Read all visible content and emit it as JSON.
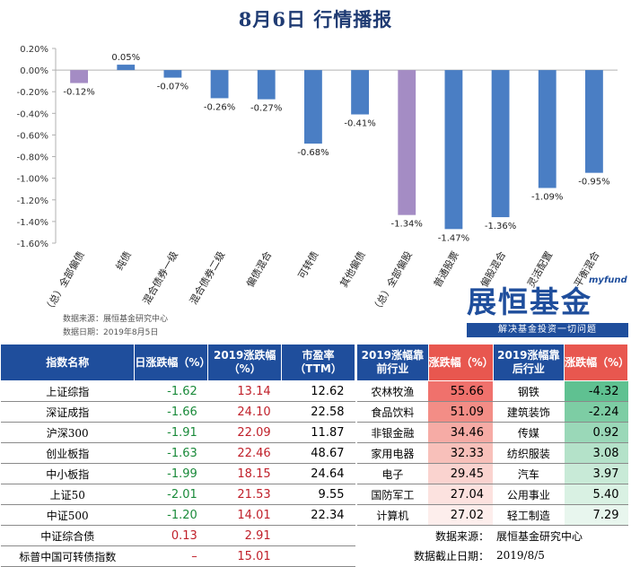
{
  "title": "8月6日  行情播报",
  "chart_data": {
    "type": "bar",
    "categories": [
      "（总）全部偏债",
      "纯债",
      "混合债券一级",
      "混合债券二级",
      "偏债混合",
      "可转债",
      "其他偏债",
      "（总）全部偏股",
      "普通股票",
      "偏股混合",
      "灵活配置",
      "平衡混合"
    ],
    "values": [
      -0.12,
      0.05,
      -0.07,
      -0.26,
      -0.27,
      -0.68,
      -0.41,
      -1.34,
      -1.47,
      -1.36,
      -1.09,
      -0.95
    ],
    "value_labels": [
      "-0.12%",
      "0.05%",
      "-0.07%",
      "-0.26%",
      "-0.27%",
      "-0.68%",
      "-0.41%",
      "-1.34%",
      "-1.47%",
      "-1.36%",
      "-1.09%",
      "-0.95%"
    ],
    "highlight_indices": [
      0,
      7
    ],
    "yticks": [
      "0.20%",
      "0.00%",
      "-0.20%",
      "-0.40%",
      "-0.60%",
      "-0.80%",
      "-1.00%",
      "-1.20%",
      "-1.40%",
      "-1.60%"
    ],
    "ylim": [
      -1.6,
      0.2
    ],
    "colors": {
      "normal": "#4a7ec4",
      "highlight": "#a48cc4",
      "axis": "#b0b0b0"
    },
    "grid": false,
    "legend": "none"
  },
  "source_note": {
    "line1": "数据来源：展恒基金研究中心",
    "line2": "数据日期：2019年8月5日"
  },
  "logo": {
    "small": "myfund",
    "main": "展恒基金",
    "slogan": "解决基金投资一切问题"
  },
  "left_table": {
    "headers": [
      "指数名称",
      "日涨跌幅（%）",
      "2019涨跌幅（%）",
      "市盈率（TTM）"
    ],
    "rows": [
      {
        "name": "上证综指",
        "day": "-1.62",
        "ytd": "13.14",
        "pe": "12.62"
      },
      {
        "name": "深证成指",
        "day": "-1.66",
        "ytd": "24.10",
        "pe": "22.58"
      },
      {
        "name": "沪深300",
        "day": "-1.91",
        "ytd": "22.09",
        "pe": "11.87"
      },
      {
        "name": "创业板指",
        "day": "-1.63",
        "ytd": "22.46",
        "pe": "48.67"
      },
      {
        "name": "中小板指",
        "day": "-1.99",
        "ytd": "18.15",
        "pe": "24.64"
      },
      {
        "name": "上证50",
        "day": "-2.01",
        "ytd": "21.53",
        "pe": "9.55"
      },
      {
        "name": "中证500",
        "day": "-1.20",
        "ytd": "14.01",
        "pe": "22.34"
      },
      {
        "name": "中证综合债",
        "day": "0.13",
        "ytd": "2.91",
        "pe": ""
      },
      {
        "name": "标普中国可转债指数",
        "day": "–",
        "ytd": "15.01",
        "pe": ""
      }
    ]
  },
  "right_table": {
    "headers": [
      "2019涨幅靠前行业",
      "涨跌幅（%）",
      "2019涨幅靠后行业",
      "涨跌幅（%）"
    ],
    "rows": [
      {
        "top": "农林牧渔",
        "top_val": "55.66",
        "bottom": "钢铁",
        "bottom_val": "-4.32"
      },
      {
        "top": "食品饮料",
        "top_val": "51.09",
        "bottom": "建筑装饰",
        "bottom_val": "-2.24"
      },
      {
        "top": "非银金融",
        "top_val": "34.46",
        "bottom": "传媒",
        "bottom_val": "0.92"
      },
      {
        "top": "家用电器",
        "top_val": "32.33",
        "bottom": "纺织服装",
        "bottom_val": "3.08"
      },
      {
        "top": "电子",
        "top_val": "29.45",
        "bottom": "汽车",
        "bottom_val": "3.97"
      },
      {
        "top": "国防军工",
        "top_val": "27.04",
        "bottom": "公用事业",
        "bottom_val": "5.40"
      },
      {
        "top": "计算机",
        "top_val": "27.02",
        "bottom": "轻工制造",
        "bottom_val": "7.29"
      }
    ],
    "top_colors": [
      "#f0716c",
      "#f38d86",
      "#f6aba5",
      "#f8c0ba",
      "#fad3cf",
      "#fce2df",
      "#fdeeec"
    ],
    "bottom_colors": [
      "#5fc191",
      "#7dcda4",
      "#9ad8b8",
      "#b4e2c9",
      "#c8ead7",
      "#d9f1e3",
      "#e8f6ee"
    ],
    "footer": {
      "source_label": "数据来源：",
      "source_value": "展恒基金研究中心",
      "date_label": "数据截止日期：",
      "date_value": "2019/8/5"
    }
  }
}
